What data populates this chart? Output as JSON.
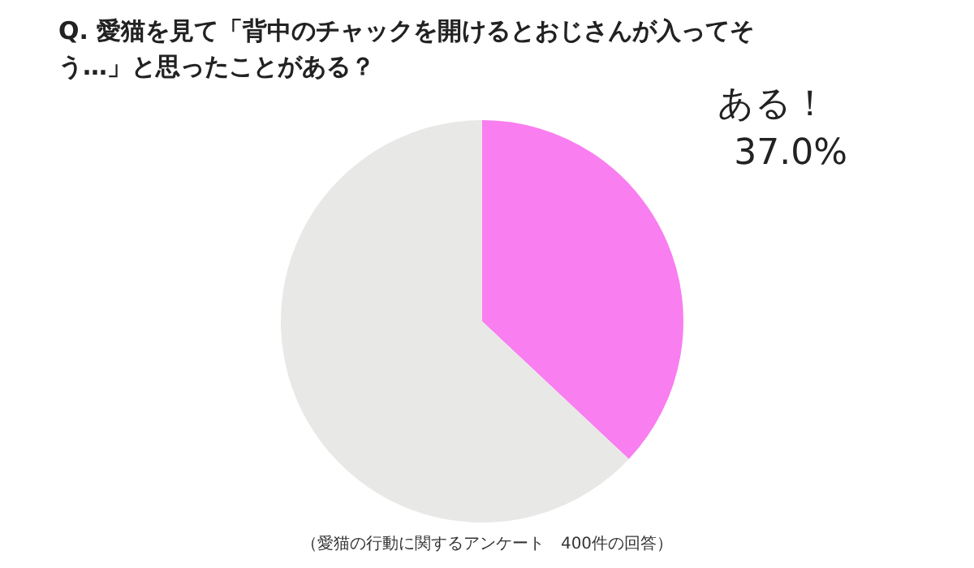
{
  "chart_data": {
    "type": "pie",
    "title": "Q. 愛猫を見て「背中のチャックを開けるとおじさんが入ってそう…」と思ったことがある？",
    "categories": [
      "ある！",
      null
    ],
    "values": [
      37.0,
      63.0
    ],
    "value_labels": [
      "37.0%",
      null
    ],
    "colors": [
      "#f97ef0",
      "#e8e8e6"
    ],
    "annotations": [
      "（愛猫の行動に関するアンケート　400件の回答）"
    ]
  }
}
